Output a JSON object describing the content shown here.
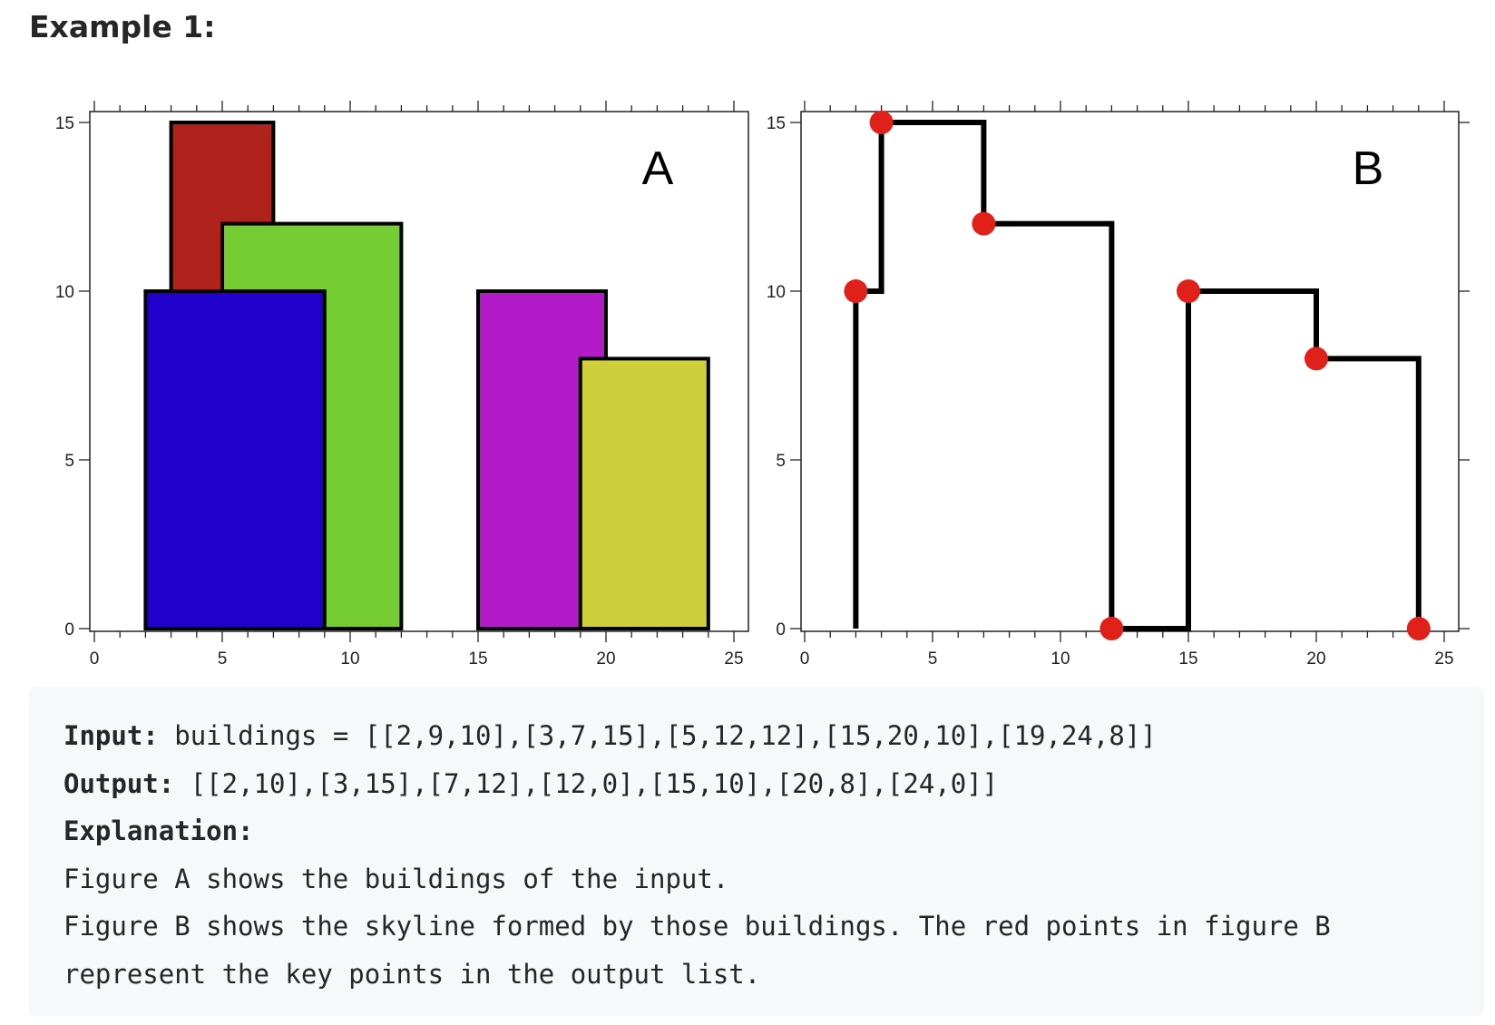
{
  "heading": "Example 1:",
  "chart_data": [
    {
      "type": "bar",
      "panel_label": "A",
      "xlim": [
        0,
        25
      ],
      "ylim": [
        0,
        15
      ],
      "xticks": [
        0,
        5,
        10,
        15,
        20,
        25
      ],
      "yticks": [
        0,
        5,
        10,
        15
      ],
      "buildings": [
        {
          "left": 3,
          "right": 7,
          "height": 15,
          "color": "#b0231c"
        },
        {
          "left": 5,
          "right": 12,
          "height": 12,
          "color": "#76cc33"
        },
        {
          "left": 2,
          "right": 9,
          "height": 10,
          "color": "#2200cc"
        },
        {
          "left": 15,
          "right": 20,
          "height": 10,
          "color": "#b31bc8"
        },
        {
          "left": 19,
          "right": 24,
          "height": 8,
          "color": "#cecf3a"
        }
      ]
    },
    {
      "type": "line",
      "panel_label": "B",
      "xlim": [
        0,
        25
      ],
      "ylim": [
        0,
        15
      ],
      "xticks": [
        0,
        5,
        10,
        15,
        20,
        25
      ],
      "yticks": [
        0,
        5,
        10,
        15
      ],
      "skyline_path": [
        [
          2,
          0
        ],
        [
          2,
          10
        ],
        [
          3,
          10
        ],
        [
          3,
          15
        ],
        [
          7,
          15
        ],
        [
          7,
          12
        ],
        [
          12,
          12
        ],
        [
          12,
          0
        ],
        [
          15,
          0
        ],
        [
          15,
          10
        ],
        [
          20,
          10
        ],
        [
          20,
          8
        ],
        [
          24,
          8
        ],
        [
          24,
          0
        ]
      ],
      "key_points": [
        [
          2,
          10
        ],
        [
          3,
          15
        ],
        [
          7,
          12
        ],
        [
          12,
          0
        ],
        [
          15,
          10
        ],
        [
          20,
          8
        ],
        [
          24,
          0
        ]
      ],
      "line_color": "#000000",
      "point_color": "#e0211a"
    }
  ],
  "code": {
    "input_label": "Input:",
    "input_value": "buildings = [[2,9,10],[3,7,15],[5,12,12],[15,20,10],[19,24,8]]",
    "output_label": "Output:",
    "output_value": "[[2,10],[3,15],[7,12],[12,0],[15,10],[20,8],[24,0]]",
    "explanation_label": "Explanation:",
    "lines": [
      "Figure A shows the buildings of the input.",
      "Figure B shows the skyline formed by those buildings. The red points in figure B",
      "represent the key points in the output list."
    ]
  }
}
